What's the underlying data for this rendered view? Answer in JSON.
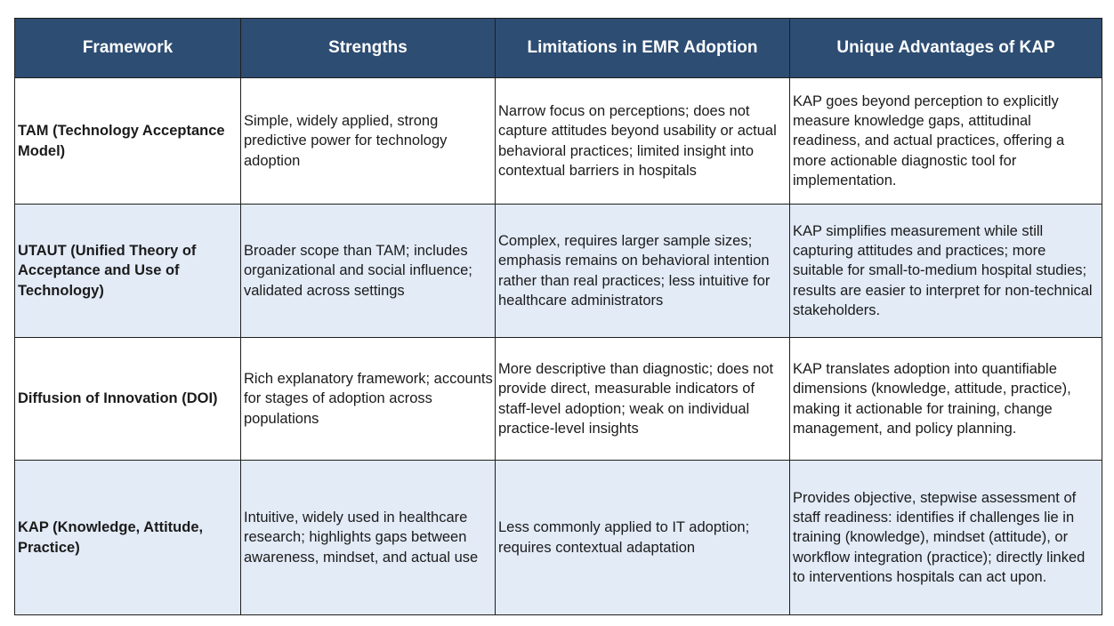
{
  "table": {
    "headers": [
      "Framework",
      "Strengths",
      "Limitations in EMR Adoption",
      "Unique Advantages of KAP"
    ],
    "rows": [
      {
        "framework": "TAM (Technology Acceptance Model)",
        "strengths": "Simple, widely applied, strong predictive power for technology adoption",
        "limitations": "Narrow focus on perceptions; does not capture attitudes beyond usability or actual behavioral practices; limited insight into contextual barriers in hospitals",
        "advantages": "KAP goes beyond perception to explicitly measure knowledge gaps, attitudinal readiness, and actual practices, offering a more actionable diagnostic tool for implementation."
      },
      {
        "framework": "UTAUT (Unified Theory of Acceptance and Use of Technology)",
        "strengths": "Broader scope than TAM; includes organizational and social influence; validated across settings",
        "limitations": "Complex, requires larger sample sizes; emphasis remains on behavioral intention rather than real practices; less intuitive for healthcare administrators",
        "advantages": "KAP simplifies measurement while still capturing attitudes and practices; more suitable for small-to-medium hospital studies; results are easier to interpret for non-technical stakeholders."
      },
      {
        "framework": "Diffusion of Innovation (DOI)",
        "strengths": "Rich explanatory framework; accounts for stages of adoption across populations",
        "limitations": "More descriptive than diagnostic; does not provide direct, measurable indicators of staff-level adoption; weak on individual practice-level insights",
        "advantages": "KAP translates adoption into quantifiable dimensions (knowledge, attitude, practice), making it actionable for training, change management, and policy planning."
      },
      {
        "framework": "KAP (Knowledge, Attitude, Practice)",
        "strengths": "Intuitive, widely used in healthcare research; highlights gaps between awareness, mindset, and actual use",
        "limitations": "Less commonly applied to IT adoption; requires contextual adaptation",
        "advantages": "Provides objective, stepwise assessment of staff readiness: identifies if challenges lie in training (knowledge), mindset (attitude), or workflow integration (practice); directly linked to interventions hospitals can act upon."
      }
    ]
  }
}
